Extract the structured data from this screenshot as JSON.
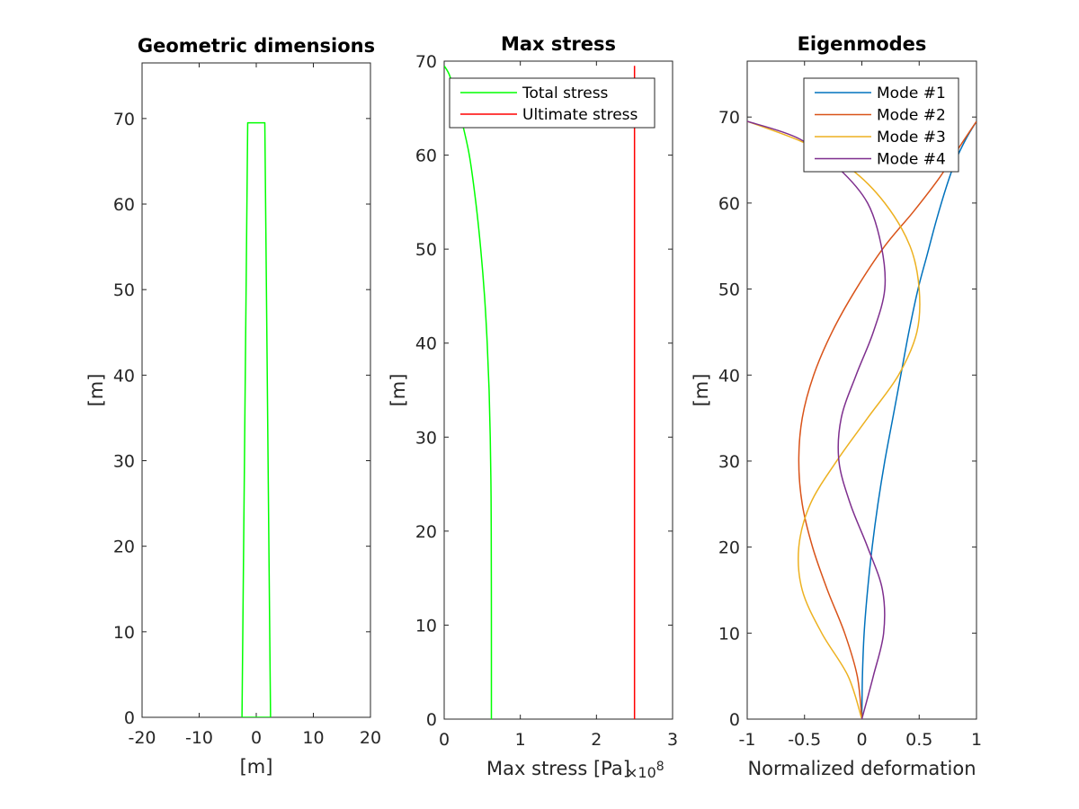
{
  "chart_data": [
    {
      "type": "line",
      "title": "Geometric dimensions",
      "xlabel": "[m]",
      "ylabel": "[m]",
      "xlim": [
        -20,
        20
      ],
      "ylim": [
        0,
        76.5
      ],
      "xticks": [
        "-20",
        "-10",
        "0",
        "10",
        "20"
      ],
      "yticks": [
        "0",
        "10",
        "20",
        "30",
        "40",
        "50",
        "60",
        "70"
      ],
      "xtick_values": [
        -20,
        -10,
        0,
        10,
        20
      ],
      "ytick_values": [
        0,
        10,
        20,
        30,
        40,
        50,
        60,
        70
      ],
      "grid": false,
      "series": [
        {
          "color": "#00ff00",
          "x": [
            -2.5,
            2.5,
            1.5,
            -1.5,
            -2.5
          ],
          "y": [
            0,
            0,
            69.5,
            69.5,
            0
          ]
        }
      ]
    },
    {
      "type": "line",
      "title": "Max stress",
      "xlabel": "Max stress [Pa]",
      "ylabel": "[m]",
      "x_exponent_base": "×10",
      "x_exponent_power": "8",
      "xlim": [
        0,
        3
      ],
      "ylim": [
        0,
        70
      ],
      "xticks": [
        "0",
        "1",
        "2",
        "3"
      ],
      "yticks": [
        "0",
        "10",
        "20",
        "30",
        "40",
        "50",
        "60",
        "70"
      ],
      "xtick_values": [
        0,
        1,
        2,
        3
      ],
      "ytick_values": [
        0,
        10,
        20,
        30,
        40,
        50,
        60,
        70
      ],
      "grid": false,
      "legend_position": "top",
      "series": [
        {
          "name": "Total stress",
          "color": "#00ff00",
          "x": [
            0.62,
            0.62,
            0.618,
            0.614,
            0.605,
            0.59,
            0.565,
            0.53,
            0.48,
            0.415,
            0.33,
            0.22,
            0.14,
            0.07,
            0
          ],
          "y": [
            0,
            10,
            20,
            25,
            30,
            35,
            40,
            45,
            50,
            55,
            60,
            64,
            66.5,
            68.5,
            69.5
          ]
        },
        {
          "name": "Ultimate stress",
          "color": "#ff0000",
          "x": [
            2.5,
            2.5
          ],
          "y": [
            0,
            69.5
          ]
        }
      ]
    },
    {
      "type": "line",
      "title": "Eigenmodes",
      "xlabel": "Normalized deformation",
      "ylabel": "[m]",
      "xlim": [
        -1,
        1
      ],
      "ylim": [
        0,
        76.5
      ],
      "xticks": [
        "-1",
        "-0.5",
        "0",
        "0.5",
        "1"
      ],
      "yticks": [
        "0",
        "10",
        "20",
        "30",
        "40",
        "50",
        "60",
        "70"
      ],
      "xtick_values": [
        -1,
        -0.5,
        0,
        0.5,
        1
      ],
      "ytick_values": [
        0,
        10,
        20,
        30,
        40,
        50,
        60,
        70
      ],
      "grid": false,
      "legend_position": "top-right",
      "series": [
        {
          "name": "Mode #1",
          "color": "#0072bd",
          "x": [
            0,
            0.005,
            0.02,
            0.05,
            0.09,
            0.14,
            0.2,
            0.27,
            0.34,
            0.41,
            0.49,
            0.57,
            0.65,
            0.74,
            0.82,
            0.91,
            1
          ],
          "y": [
            0,
            5,
            10,
            15,
            20,
            25,
            30,
            35,
            40,
            45,
            50,
            54,
            58,
            62,
            65,
            67.5,
            69.5
          ]
        },
        {
          "name": "Mode #2",
          "color": "#d95319",
          "x": [
            0,
            -0.04,
            -0.15,
            -0.3,
            -0.43,
            -0.52,
            -0.55,
            -0.52,
            -0.42,
            -0.26,
            -0.05,
            0.2,
            0.45,
            0.68,
            0.85,
            1
          ],
          "y": [
            0,
            5,
            10,
            15,
            20,
            25,
            30,
            35,
            40,
            45,
            50,
            55,
            59,
            63,
            66.5,
            69.5
          ]
        },
        {
          "name": "Mode #3",
          "color": "#edb120",
          "x": [
            0,
            -0.12,
            -0.35,
            -0.52,
            -0.55,
            -0.45,
            -0.22,
            0.05,
            0.32,
            0.48,
            0.5,
            0.42,
            0.2,
            -0.1,
            -0.5,
            -1
          ],
          "y": [
            0,
            5,
            10,
            15,
            20,
            25,
            30,
            35,
            40,
            45,
            50,
            55,
            60,
            64,
            67,
            69.5
          ]
        },
        {
          "name": "Mode #4",
          "color": "#7e2f8e",
          "x": [
            0,
            0.1,
            0.19,
            0.18,
            0.05,
            -0.1,
            -0.2,
            -0.18,
            -0.05,
            0.1,
            0.2,
            0.17,
            0.05,
            -0.2,
            -0.55,
            -1
          ],
          "y": [
            0,
            5,
            10,
            15,
            20,
            25,
            30,
            35,
            40,
            45,
            50,
            55,
            60,
            64,
            67.5,
            69.5
          ]
        }
      ]
    }
  ]
}
